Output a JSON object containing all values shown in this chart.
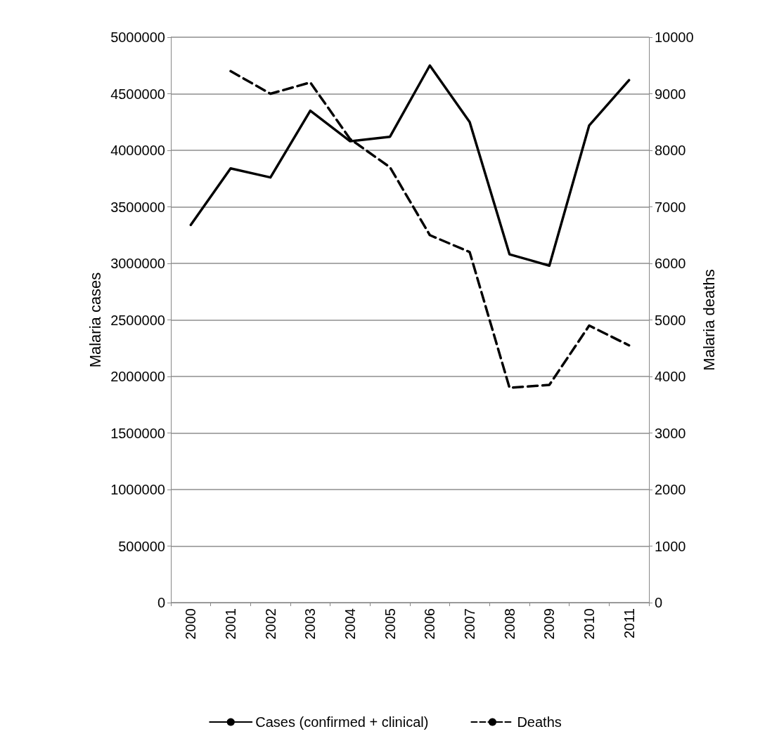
{
  "chart_data": {
    "type": "line",
    "categories": [
      "2000",
      "2001",
      "2002",
      "2003",
      "2004",
      "2005",
      "2006",
      "2007",
      "2008",
      "2009",
      "2010",
      "2011"
    ],
    "series": [
      {
        "name": "Cases (confirmed + clinical)",
        "color": "#000000",
        "line_style": "solid",
        "values": [
          3340000,
          3840000,
          3760000,
          4350000,
          4080000,
          4120000,
          4750000,
          4250000,
          3080000,
          2980000,
          4220000,
          4620000
        ]
      },
      {
        "name": "Deaths",
        "color": "#000000",
        "line_style": "dashed",
        "axis": "y2",
        "values": [
          null,
          9400,
          9000,
          9200,
          8200,
          7700,
          6500,
          6200,
          3800,
          3850,
          4900,
          4550
        ]
      }
    ],
    "ylabel": "Malaria cases",
    "y2label": "Malaria deaths",
    "ylim": [
      0,
      5000000
    ],
    "yticks": [
      0,
      500000,
      1000000,
      1500000,
      2000000,
      2500000,
      3000000,
      3500000,
      4000000,
      4500000,
      5000000
    ],
    "y2lim": [
      0,
      10000
    ],
    "y2ticks": [
      0,
      1000,
      2000,
      3000,
      4000,
      5000,
      6000,
      7000,
      8000,
      9000,
      10000
    ],
    "grid": "y",
    "legend": "bottom",
    "marker": "none"
  }
}
